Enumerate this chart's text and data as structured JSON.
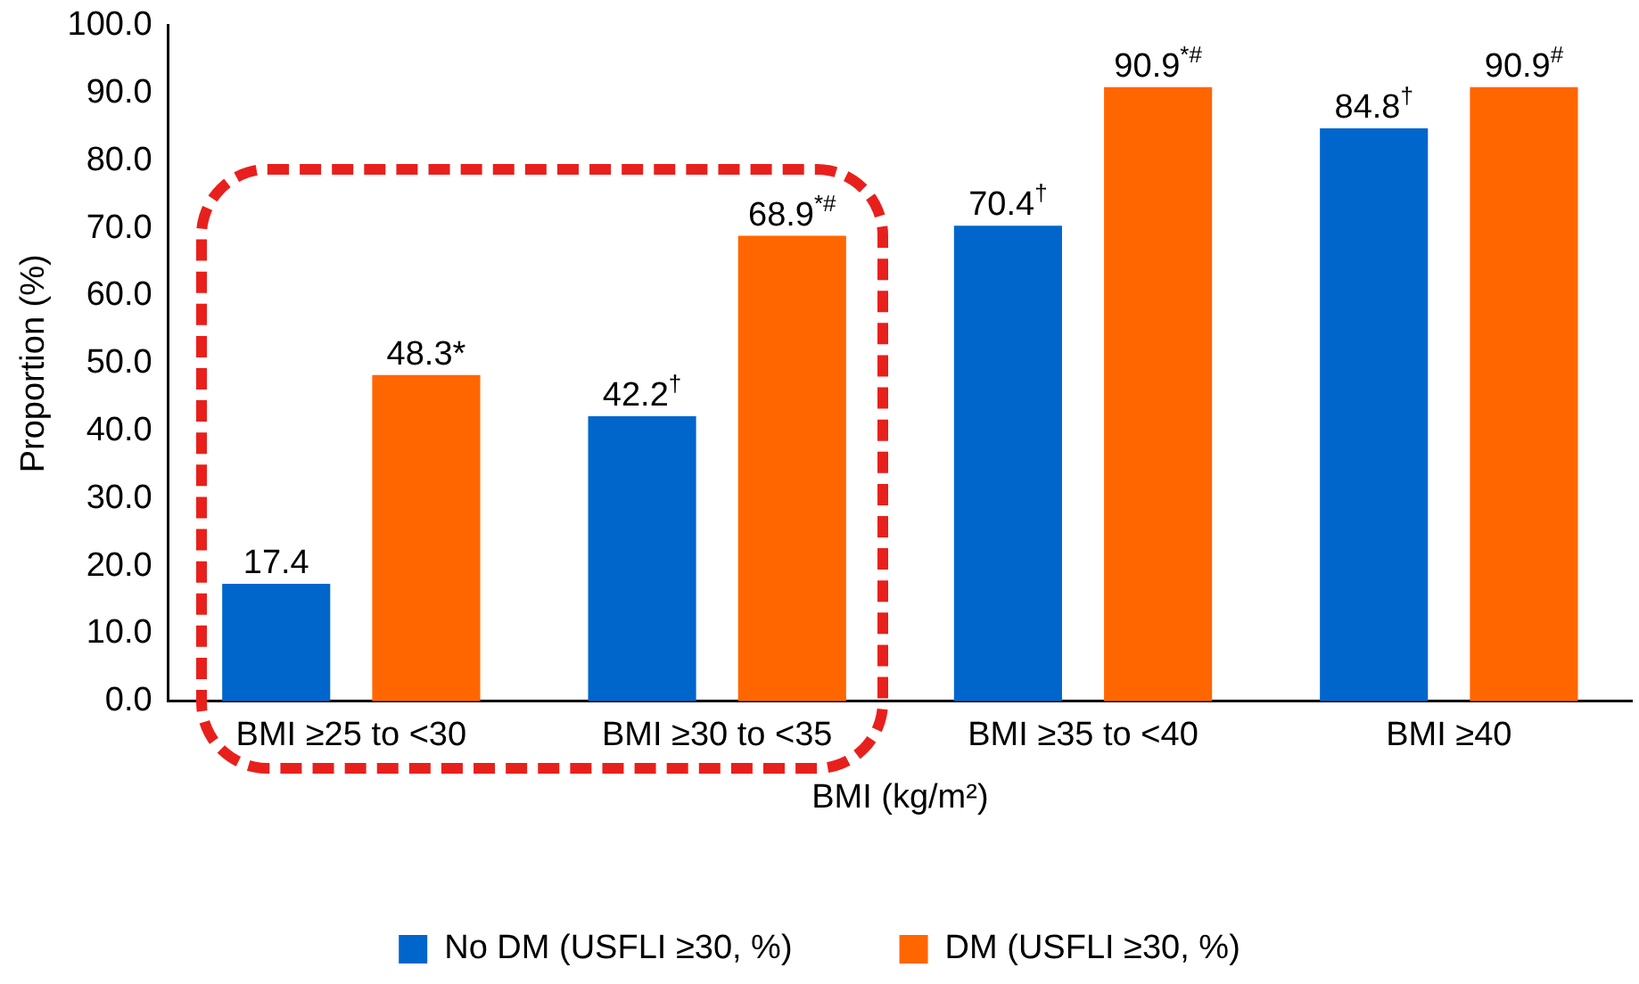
{
  "chart_data": {
    "type": "bar",
    "xlabel": "BMI (kg/m²)",
    "ylabel": "Proportion (%)",
    "categories": [
      "BMI ≥25 to <30",
      "BMI ≥30 to <35",
      "BMI ≥35 to <40",
      "BMI ≥40"
    ],
    "series": [
      {
        "name": "No DM (USFLI ≥30, %)",
        "color": "#0066cc",
        "values": [
          17.4,
          42.2,
          70.4,
          84.8
        ],
        "value_labels": [
          "17.4",
          "42.2$^{†}$",
          "70.4$^{†}$",
          "84.8$^{†}$"
        ]
      },
      {
        "name": "DM (USFLI ≥30, %)",
        "color": "#ff6600",
        "values": [
          48.3,
          68.9,
          90.9,
          90.9
        ],
        "value_labels": [
          "48.3*",
          "68.9$^{*#}$",
          "90.9$^{*#}$",
          "90.9$^{#}$"
        ]
      }
    ],
    "ylim": [
      0,
      100
    ],
    "yticks": [
      {
        "value": 0,
        "label": "0.0"
      },
      {
        "value": 10,
        "label": "10.0"
      },
      {
        "value": 20,
        "label": "20.0"
      },
      {
        "value": 30,
        "label": "30.0"
      },
      {
        "value": 40,
        "label": "40.0"
      },
      {
        "value": 50,
        "label": "50.0"
      },
      {
        "value": 60,
        "label": "60.0"
      },
      {
        "value": 70,
        "label": "70.0"
      },
      {
        "value": 80,
        "label": "80.0"
      },
      {
        "value": 90,
        "label": "90.0"
      },
      {
        "value": 100,
        "label": "100.0"
      }
    ],
    "grid": false,
    "legend": "bottom"
  }
}
